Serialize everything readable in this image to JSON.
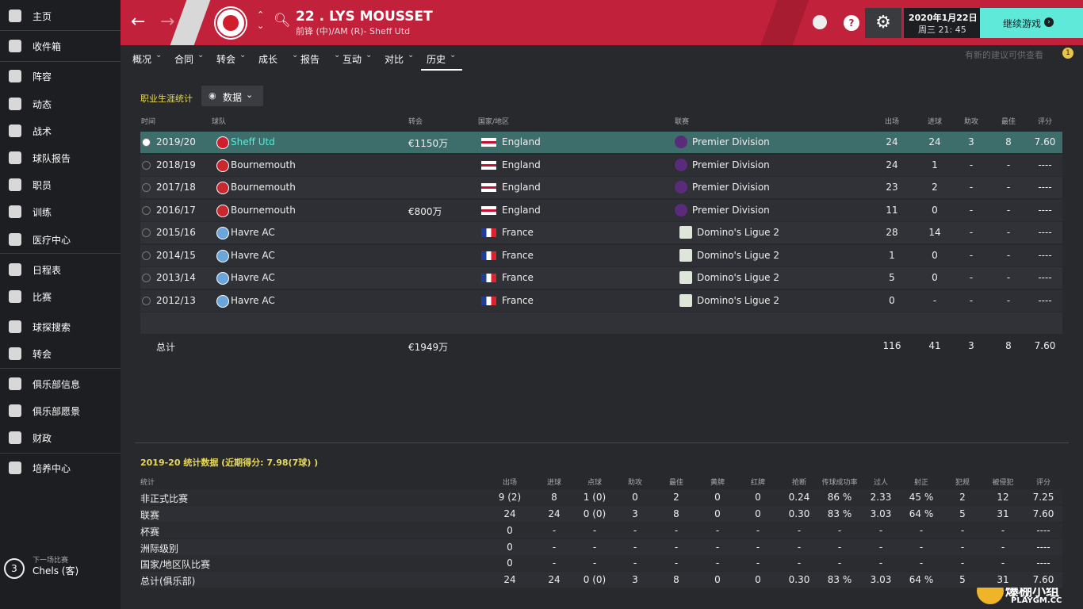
{
  "sidebar": {
    "items": [
      "主页",
      "收件箱",
      "阵容",
      "动态",
      "战术",
      "球队报告",
      "职员",
      "训练",
      "医疗中心",
      "日程表",
      "比赛",
      "球探搜索",
      "转会",
      "俱乐部信息",
      "俱乐部愿景",
      "财政",
      "培养中心"
    ],
    "next_match": {
      "label": "下一场比赛",
      "opponent": "Chels (客)",
      "days": "3"
    }
  },
  "header": {
    "player": "22 . LYS MOUSSET",
    "subtitle": "前锋 (中)/AM (R)- Sheff Utd",
    "date": "2020年1月22日",
    "time": "周三 21: 45",
    "continue": "继续游戏"
  },
  "tabs": [
    "概况",
    "合同",
    "转会",
    "成长",
    "报告",
    "互动",
    "对比",
    "历史"
  ],
  "notification": {
    "text": "有新的建议可供查看",
    "count": "1"
  },
  "career": {
    "title": "职业生涯统计",
    "view": "数据",
    "columns": [
      "时间",
      "球队",
      "转会",
      "国家/地区",
      "联赛",
      "出场",
      "进球",
      "助攻",
      "最佳",
      "评分"
    ],
    "rows": [
      [
        "2019/20",
        "Sheff Utd",
        "€1150万",
        "England",
        "Premier Division",
        "24",
        "24",
        "3",
        "8",
        "7.60"
      ],
      [
        "2018/19",
        "Bournemouth",
        null,
        "England",
        "Premier Division",
        "24",
        "1",
        "-",
        "-",
        "----"
      ],
      [
        "2017/18",
        "Bournemouth",
        null,
        "England",
        "Premier Division",
        "23",
        "2",
        "-",
        "-",
        "----"
      ],
      [
        "2016/17",
        "Bournemouth",
        "€800万",
        "England",
        "Premier Division",
        "11",
        "0",
        "-",
        "-",
        "----"
      ],
      [
        "2015/16",
        "Havre AC",
        null,
        "France",
        "Domino's Ligue 2",
        "28",
        "14",
        "-",
        "-",
        "----"
      ],
      [
        "2014/15",
        "Havre AC",
        null,
        "France",
        "Domino's Ligue 2",
        "1",
        "0",
        "-",
        "-",
        "----"
      ],
      [
        "2013/14",
        "Havre AC",
        null,
        "France",
        "Domino's Ligue 2",
        "5",
        "0",
        "-",
        "-",
        "----"
      ],
      [
        "2012/13",
        "Havre AC",
        null,
        "France",
        "Domino's Ligue 2",
        "0",
        "-",
        "-",
        "-",
        "----"
      ]
    ],
    "total": [
      "总计",
      "€1949万",
      "116",
      "41",
      "3",
      "8",
      "7.60"
    ]
  },
  "season_stats": {
    "title": "2019-20 统计数据 (近期得分: 7.98(7球) )",
    "columns": [
      "统计",
      "出场",
      "进球",
      "点球",
      "助攻",
      "最佳",
      "黄牌",
      "红牌",
      "抢断",
      "传球成功率",
      "过人",
      "射正",
      "犯规",
      "被侵犯",
      "评分"
    ],
    "rows": [
      [
        "非正式比赛",
        "9 (2)",
        "8",
        "1 (0)",
        "0",
        "2",
        "0",
        "0",
        "0.24",
        "86 %",
        "2.33",
        "45 %",
        "2",
        "12",
        "7.25"
      ],
      [
        "联赛",
        "24",
        "24",
        "0 (0)",
        "3",
        "8",
        "0",
        "0",
        "0.30",
        "83 %",
        "3.03",
        "64 %",
        "5",
        "31",
        "7.60"
      ],
      [
        "杯赛",
        "0",
        "-",
        "-",
        "-",
        "-",
        "-",
        "-",
        "-",
        "-",
        "-",
        "-",
        "-",
        "-",
        "----"
      ],
      [
        "洲际级别",
        "0",
        "-",
        "-",
        "-",
        "-",
        "-",
        "-",
        "-",
        "-",
        "-",
        "-",
        "-",
        "-",
        "----"
      ],
      [
        "国家/地区队比赛",
        "0",
        "-",
        "-",
        "-",
        "-",
        "-",
        "-",
        "-",
        "-",
        "-",
        "-",
        "-",
        "-",
        "----"
      ],
      [
        "总计(俱乐部)",
        "24",
        "24",
        "0 (0)",
        "3",
        "8",
        "0",
        "0",
        "0.30",
        "83 %",
        "3.03",
        "64 %",
        "5",
        "31",
        "7.60"
      ]
    ]
  },
  "watermark": {
    "title": "爆棚小组",
    "site": "PLAYGM.CC"
  }
}
